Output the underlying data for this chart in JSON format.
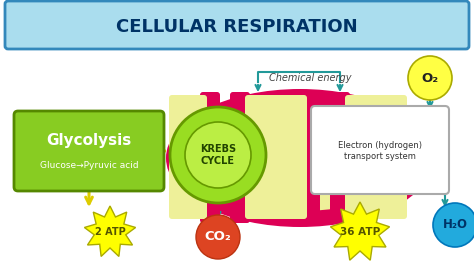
{
  "title": "CELLULAR RESPIRATION",
  "title_fontsize": 13,
  "title_bg": "#aaddee",
  "title_border": "#3388bb",
  "title_color": "#003366",
  "bg_color": "#ffffff",
  "subtitle_chemical": "Chemical energy",
  "glycolysis_label": "Glycolysis",
  "glycolysis_sub": "Glucose→Pyruvic acid",
  "glycolysis_bg": "#88cc22",
  "glycolysis_border": "#558800",
  "krebs_label": "KREBS\nCYCLE",
  "krebs_bg_outer": "#99dd22",
  "krebs_bg_inner": "#bbee44",
  "krebs_border": "#669900",
  "electron_label": "Electron (hydrogen)\ntransport system",
  "electron_bg": "#ffffff",
  "electron_border": "#aaaaaa",
  "mito_outer_color": "#dd0055",
  "mito_inner_color": "#eef099",
  "mito_cristae_color": "#dd0055",
  "atp2_label": "2 ATP",
  "atp36_label": "36 ATP",
  "atp_bg": "#ffff00",
  "atp_border": "#aaaa00",
  "co2_label": "CO₂",
  "co2_bg": "#dd4422",
  "co2_color": "#ffffff",
  "o2_label": "O₂",
  "o2_bg": "#ffff44",
  "o2_border": "#aaaa00",
  "o2_color": "#222222",
  "h2o_label": "H₂O",
  "h2o_bg": "#22aadd",
  "h2o_border": "#0077bb",
  "h2o_color": "#003366",
  "arrow_color": "#229999",
  "arrow_yellow": "#ddcc00"
}
